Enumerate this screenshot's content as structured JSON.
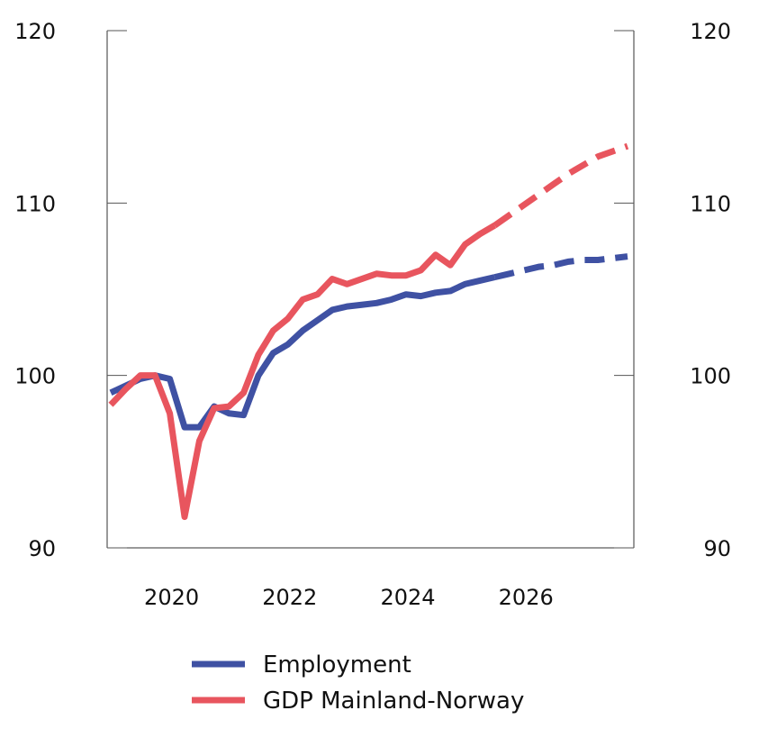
{
  "chart_data": {
    "type": "line",
    "x_quarters_start": "2019Q1",
    "x": [
      "2019Q1",
      "2019Q2",
      "2019Q3",
      "2019Q4",
      "2020Q1",
      "2020Q2",
      "2020Q3",
      "2020Q4",
      "2021Q1",
      "2021Q2",
      "2021Q3",
      "2021Q4",
      "2022Q1",
      "2022Q2",
      "2022Q3",
      "2022Q4",
      "2023Q1",
      "2023Q2",
      "2023Q3",
      "2023Q4",
      "2024Q1",
      "2024Q2",
      "2024Q3",
      "2024Q4",
      "2025Q1",
      "2025Q2",
      "2025Q3",
      "2025Q4",
      "2026Q1",
      "2026Q2",
      "2026Q3",
      "2026Q4",
      "2027Q1",
      "2027Q2",
      "2027Q3",
      "2027Q4"
    ],
    "forecast_from": "2025Q3",
    "series": [
      {
        "name": "Employment",
        "color": "#3f51a3",
        "values": [
          99.0,
          99.4,
          99.8,
          100.0,
          99.8,
          97.0,
          97.0,
          98.2,
          97.8,
          97.7,
          100.0,
          101.3,
          101.8,
          102.6,
          103.2,
          103.8,
          104.0,
          104.1,
          104.2,
          104.4,
          104.7,
          104.6,
          104.8,
          104.9,
          105.3,
          105.5,
          105.7,
          105.9,
          106.1,
          106.3,
          106.4,
          106.6,
          106.7,
          106.7,
          106.8,
          106.9
        ]
      },
      {
        "name": "GDP Mainland-Norway",
        "color": "#e8555e",
        "values": [
          98.3,
          99.2,
          100.0,
          100.0,
          97.8,
          91.8,
          96.2,
          98.1,
          98.2,
          99.0,
          101.2,
          102.6,
          103.3,
          104.4,
          104.7,
          105.6,
          105.3,
          105.6,
          105.9,
          105.8,
          105.8,
          106.1,
          107.0,
          106.4,
          107.6,
          108.2,
          108.7,
          109.3,
          109.9,
          110.5,
          111.1,
          111.7,
          112.2,
          112.7,
          113.0,
          113.3
        ]
      }
    ],
    "ylim": [
      90,
      120
    ],
    "y_ticks": [
      "90",
      "100",
      "110",
      "120"
    ],
    "x_ticks": [
      "2020",
      "2022",
      "2024",
      "2026"
    ],
    "grid": false,
    "legend": "bottom"
  }
}
